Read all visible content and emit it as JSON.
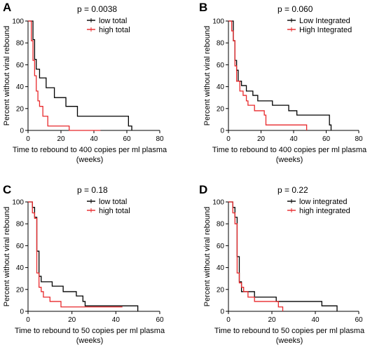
{
  "chart_data": [
    {
      "type": "line",
      "panel": "A",
      "annotation": "p = 0.0038",
      "xlabel": "Time to rebound to 400 copies per ml plasma",
      "xlabel_unit": "(weeks)",
      "ylabel": "Percent without viral rebound",
      "xlim": [
        0,
        80
      ],
      "ylim": [
        0,
        100
      ],
      "xticks": [
        0,
        20,
        40,
        60,
        80
      ],
      "yticks": [
        0,
        20,
        40,
        60,
        80,
        100
      ],
      "legend_position": "top-right",
      "series": [
        {
          "name": "low total",
          "color": "#000000",
          "x": [
            0,
            3,
            4,
            5,
            7,
            11,
            16,
            23,
            30,
            61,
            63
          ],
          "y": [
            100,
            83,
            65,
            56,
            48,
            39,
            30,
            22,
            13,
            4,
            0
          ]
        },
        {
          "name": "high total",
          "color": "#e8282b",
          "x": [
            0,
            2,
            3,
            4,
            5,
            6,
            7,
            9,
            12,
            25,
            44
          ],
          "y": [
            100,
            82,
            64,
            50,
            36,
            27,
            22,
            13,
            4,
            0,
            0
          ]
        }
      ]
    },
    {
      "type": "line",
      "panel": "B",
      "annotation": "p = 0.060",
      "xlabel": "Time to rebound to 400 copies per ml plasma",
      "xlabel_unit": "(weeks)",
      "ylabel": "Percent without viral rebound",
      "xlim": [
        0,
        80
      ],
      "ylim": [
        0,
        100
      ],
      "xticks": [
        0,
        20,
        40,
        60,
        80
      ],
      "yticks": [
        0,
        20,
        40,
        60,
        80,
        100
      ],
      "legend_position": "top-right",
      "series": [
        {
          "name": "Low Integrated",
          "color": "#000000",
          "x": [
            0,
            3,
            4,
            5,
            6,
            8,
            11,
            15,
            18,
            27,
            37,
            42,
            62,
            63
          ],
          "y": [
            100,
            82,
            64,
            55,
            45,
            41,
            36,
            32,
            27,
            23,
            18,
            14,
            5,
            0
          ]
        },
        {
          "name": "High Integrated",
          "color": "#e8282b",
          "x": [
            0,
            2,
            3,
            4,
            5,
            7,
            9,
            11,
            12,
            16,
            22,
            23,
            48
          ],
          "y": [
            100,
            91,
            82,
            59,
            45,
            36,
            32,
            27,
            23,
            18,
            14,
            5,
            0
          ]
        }
      ]
    },
    {
      "type": "line",
      "panel": "C",
      "annotation": "p = 0.18",
      "xlabel": "Time to rebound to 50 copies per ml plasma",
      "xlabel_unit": "(weeks)",
      "ylabel": "Percent without viral rebound",
      "xlim": [
        0,
        60
      ],
      "ylim": [
        0,
        100
      ],
      "xticks": [
        0,
        20,
        40,
        60
      ],
      "yticks": [
        0,
        20,
        40,
        60,
        80,
        100
      ],
      "legend_position": "top-right",
      "series": [
        {
          "name": "low total",
          "color": "#000000",
          "x": [
            0,
            2,
            3,
            4,
            5,
            6,
            11,
            16,
            22,
            25,
            26,
            50
          ],
          "y": [
            100,
            95,
            86,
            55,
            32,
            27,
            23,
            18,
            14,
            9,
            5,
            0
          ]
        },
        {
          "name": "high total",
          "color": "#e8282b",
          "x": [
            0,
            2,
            3,
            4,
            5,
            6,
            7,
            10,
            15,
            43
          ],
          "y": [
            100,
            90,
            85,
            35,
            22,
            18,
            13,
            9,
            4,
            4
          ]
        }
      ]
    },
    {
      "type": "line",
      "panel": "D",
      "annotation": "p = 0.22",
      "xlabel": "Time to rebound to 50 copies per ml plasma",
      "xlabel_unit": "(weeks)",
      "ylabel": "Percent without viral rebound",
      "xlim": [
        0,
        60
      ],
      "ylim": [
        0,
        100
      ],
      "xticks": [
        0,
        20,
        40,
        60
      ],
      "yticks": [
        0,
        20,
        40,
        60,
        80,
        100
      ],
      "legend_position": "top-right",
      "series": [
        {
          "name": "low integrated",
          "color": "#000000",
          "x": [
            0,
            2,
            3,
            4,
            5,
            6,
            8,
            12,
            22,
            43,
            50
          ],
          "y": [
            100,
            95,
            86,
            50,
            27,
            18,
            18,
            13,
            9,
            5,
            0
          ]
        },
        {
          "name": "high integrated",
          "color": "#e8282b",
          "x": [
            0,
            2,
            3,
            4,
            5,
            6,
            7,
            9,
            12,
            23,
            25
          ],
          "y": [
            100,
            90,
            80,
            35,
            26,
            22,
            18,
            13,
            9,
            4,
            0
          ]
        }
      ]
    }
  ]
}
